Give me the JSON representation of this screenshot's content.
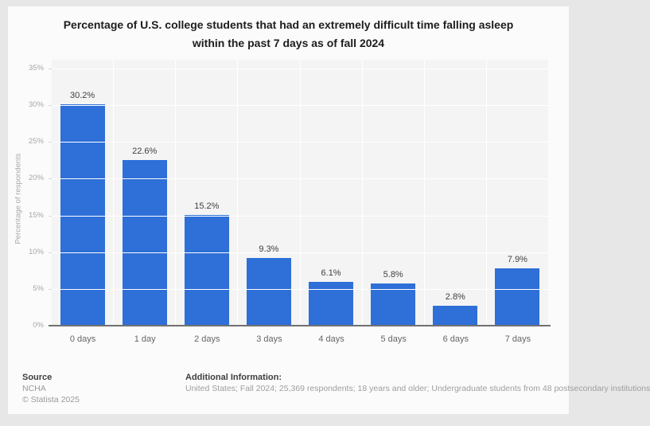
{
  "chart": {
    "title_line1": "Percentage of U.S. college students that had an extremely difficult time falling asleep",
    "title_line2": "within the past 7 days as of fall 2024"
  },
  "chart_data": {
    "type": "bar",
    "title": "Percentage of U.S. college students that had an extremely difficult time falling asleep within the past 7 days as of fall 2024",
    "categories": [
      "0 days",
      "1 day",
      "2 days",
      "3 days",
      "4 days",
      "5 days",
      "6 days",
      "7 days"
    ],
    "values": [
      30.2,
      22.6,
      15.2,
      9.3,
      6.1,
      5.8,
      2.8,
      7.9
    ],
    "value_labels": [
      "30.2%",
      "22.6%",
      "15.2%",
      "9.3%",
      "6.1%",
      "5.8%",
      "2.8%",
      "7.9%"
    ],
    "xlabel": "",
    "ylabel": "Percentage of respondents",
    "ylim": [
      0,
      35
    ],
    "ytick_step": 5,
    "ytick_labels": [
      "0%",
      "5%",
      "10%",
      "15%",
      "20%",
      "25%",
      "30%",
      "35%"
    ],
    "grid": true,
    "legend": false,
    "bar_color": "#2e6fd8"
  },
  "footer": {
    "source_label": "Source",
    "source_value": "NCHA",
    "copyright": "© Statista 2025",
    "additional_label": "Additional Information:",
    "additional_value": "United States; Fall 2024; 25,369 respondents; 18 years and older; Undergraduate students from 48 postsecondary institutions"
  },
  "colors": {
    "bar": "#2e6fd8",
    "page_background": "#e7e7e7",
    "card_background": "#fbfbfb",
    "plot_background": "#f4f4f4",
    "axis_line": "#717171"
  }
}
